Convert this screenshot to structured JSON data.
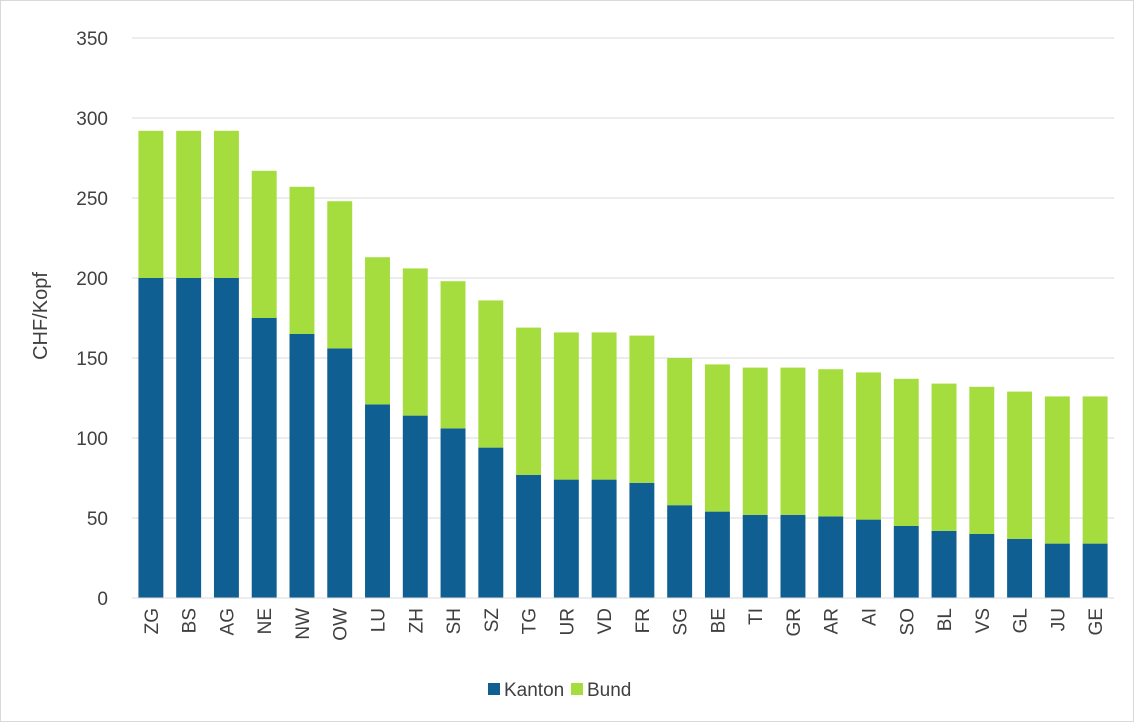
{
  "chart_data": {
    "type": "bar",
    "stacked": true,
    "categories": [
      "ZG",
      "BS",
      "AG",
      "NE",
      "NW",
      "OW",
      "LU",
      "ZH",
      "SH",
      "SZ",
      "TG",
      "UR",
      "VD",
      "FR",
      "SG",
      "BE",
      "TI",
      "GR",
      "AR",
      "AI",
      "SO",
      "BL",
      "VS",
      "GL",
      "JU",
      "GE"
    ],
    "series": [
      {
        "name": "Kanton",
        "color": "#0f5f93",
        "values": [
          200,
          200,
          200,
          175,
          165,
          156,
          121,
          114,
          106,
          94,
          77,
          74,
          74,
          72,
          58,
          54,
          52,
          52,
          51,
          49,
          45,
          42,
          40,
          37,
          34,
          34
        ]
      },
      {
        "name": "Bund",
        "color": "#a6dd3e",
        "values": [
          92,
          92,
          92,
          92,
          92,
          92,
          92,
          92,
          92,
          92,
          92,
          92,
          92,
          92,
          92,
          92,
          92,
          92,
          92,
          92,
          92,
          92,
          92,
          92,
          92,
          92
        ]
      }
    ],
    "ylabel": "CHF/Kopf",
    "xlabel": "",
    "ylim": [
      0,
      350
    ],
    "yticks": [
      0,
      50,
      100,
      150,
      200,
      250,
      300,
      350
    ],
    "grid": true,
    "legend": "bottom"
  }
}
